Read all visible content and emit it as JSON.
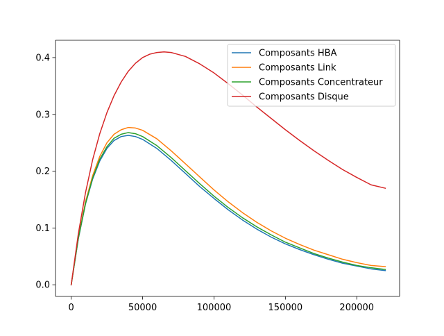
{
  "chart_data": {
    "type": "line",
    "title": "",
    "xlabel": "",
    "ylabel": "",
    "xlim": [
      -11000,
      230000
    ],
    "ylim": [
      -0.0205,
      0.4305
    ],
    "xticks": [
      0,
      50000,
      100000,
      150000,
      200000
    ],
    "xtick_labels": [
      "0",
      "50000",
      "100000",
      "150000",
      "200000"
    ],
    "yticks": [
      0.0,
      0.1,
      0.2,
      0.3,
      0.4
    ],
    "ytick_labels": [
      "0.0",
      "0.1",
      "0.2",
      "0.3",
      "0.4"
    ],
    "grid": false,
    "legend_position": "top-right",
    "series": [
      {
        "name": "Composants HBA",
        "color": "#1f77b4",
        "x": [
          0,
          5000,
          10000,
          15000,
          20000,
          25000,
          30000,
          35000,
          40000,
          45000,
          50000,
          60000,
          70000,
          80000,
          90000,
          100000,
          110000,
          120000,
          130000,
          140000,
          150000,
          160000,
          170000,
          180000,
          190000,
          200000,
          210000,
          220000
        ],
        "y": [
          0.0,
          0.081,
          0.142,
          0.186,
          0.218,
          0.24,
          0.254,
          0.261,
          0.263,
          0.261,
          0.256,
          0.24,
          0.219,
          0.196,
          0.173,
          0.152,
          0.132,
          0.114,
          0.098,
          0.084,
          0.072,
          0.062,
          0.053,
          0.045,
          0.038,
          0.033,
          0.028,
          0.025
        ]
      },
      {
        "name": "Composants Link",
        "color": "#ff7f0e",
        "x": [
          0,
          5000,
          10000,
          15000,
          20000,
          25000,
          30000,
          35000,
          40000,
          45000,
          50000,
          60000,
          70000,
          80000,
          90000,
          100000,
          110000,
          120000,
          130000,
          140000,
          150000,
          160000,
          170000,
          180000,
          190000,
          200000,
          210000,
          220000
        ],
        "y": [
          0.0,
          0.083,
          0.146,
          0.192,
          0.226,
          0.25,
          0.265,
          0.273,
          0.277,
          0.276,
          0.272,
          0.257,
          0.236,
          0.213,
          0.19,
          0.167,
          0.146,
          0.127,
          0.11,
          0.095,
          0.082,
          0.071,
          0.061,
          0.053,
          0.045,
          0.039,
          0.034,
          0.032
        ]
      },
      {
        "name": "Composants Concentrateur",
        "color": "#2ca02c",
        "x": [
          0,
          5000,
          10000,
          15000,
          20000,
          25000,
          30000,
          35000,
          40000,
          45000,
          50000,
          60000,
          70000,
          80000,
          90000,
          100000,
          110000,
          120000,
          130000,
          140000,
          150000,
          160000,
          170000,
          180000,
          190000,
          200000,
          210000,
          220000
        ],
        "y": [
          0.0,
          0.082,
          0.143,
          0.188,
          0.221,
          0.243,
          0.258,
          0.265,
          0.268,
          0.266,
          0.261,
          0.245,
          0.224,
          0.201,
          0.178,
          0.156,
          0.136,
          0.118,
          0.102,
          0.088,
          0.075,
          0.065,
          0.055,
          0.047,
          0.04,
          0.034,
          0.03,
          0.027
        ]
      },
      {
        "name": "Composants Disque",
        "color": "#d62728",
        "x": [
          0,
          5000,
          10000,
          15000,
          20000,
          25000,
          30000,
          35000,
          40000,
          45000,
          50000,
          55000,
          60000,
          65000,
          70000,
          80000,
          90000,
          100000,
          110000,
          120000,
          130000,
          140000,
          150000,
          160000,
          170000,
          180000,
          190000,
          200000,
          210000,
          220000
        ],
        "y": [
          0.0,
          0.09,
          0.162,
          0.22,
          0.266,
          0.303,
          0.333,
          0.357,
          0.376,
          0.39,
          0.4,
          0.406,
          0.409,
          0.41,
          0.409,
          0.402,
          0.389,
          0.373,
          0.354,
          0.334,
          0.313,
          0.293,
          0.273,
          0.254,
          0.236,
          0.219,
          0.203,
          0.189,
          0.176,
          0.17
        ]
      }
    ]
  }
}
